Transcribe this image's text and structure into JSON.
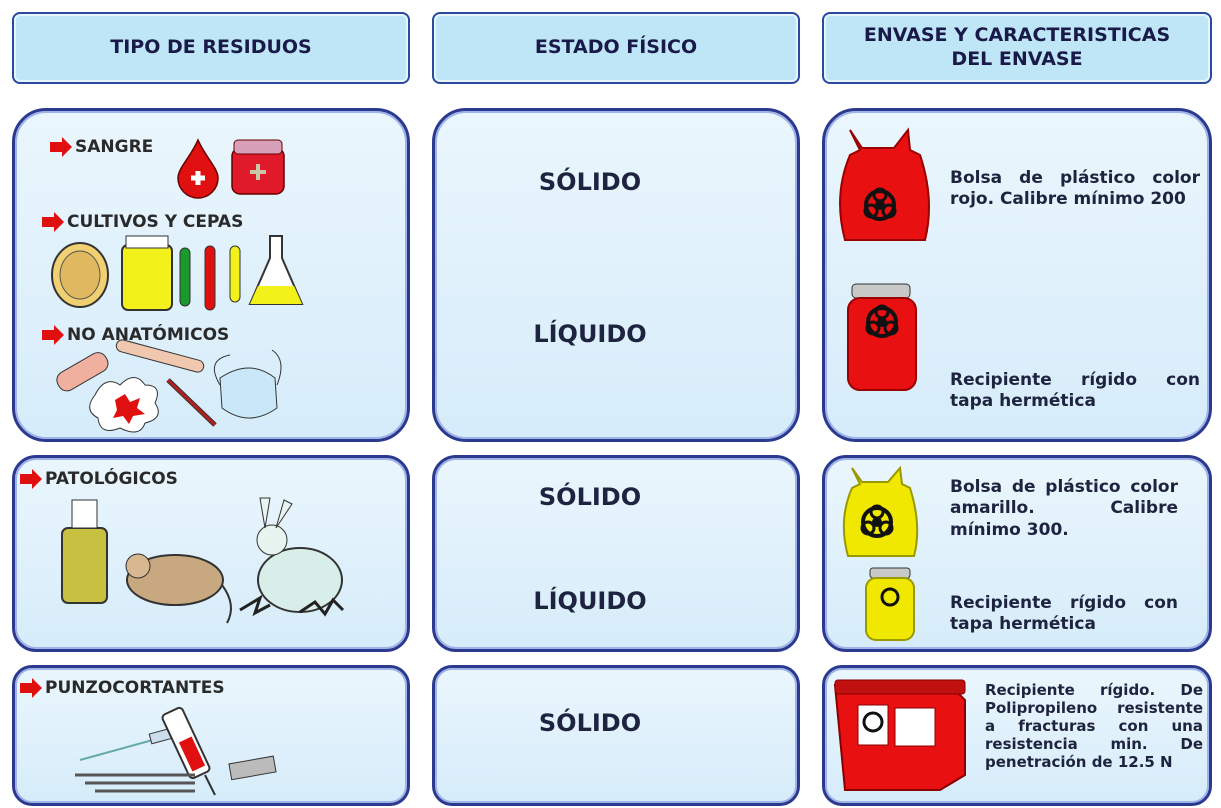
{
  "headers": [
    "TIPO DE RESIDUOS",
    "ESTADO FÍSICO",
    "ENVASE Y CARACTERISTICAS DEL ENVASE"
  ],
  "rows": [
    {
      "types": [
        "SANGRE",
        "CULTIVOS Y CEPAS",
        "NO ANATÓMICOS"
      ],
      "states": [
        "SÓLIDO",
        "LÍQUIDO"
      ],
      "containers": [
        "Bolsa de plástico color rojo. Calibre mínimo 200",
        "Recipiente rígido con tapa hermética"
      ]
    },
    {
      "types": [
        "PATOLÓGICOS"
      ],
      "states": [
        "SÓLIDO",
        "LÍQUIDO"
      ],
      "containers": [
        "Bolsa de plástico color amarillo. Calibre mínimo 300.",
        "Recipiente rígido con tapa hermética"
      ]
    },
    {
      "types": [
        "PUNZOCORTANTES"
      ],
      "states": [
        "SÓLIDO"
      ],
      "containers": [
        "Recipiente rígido. De Polipropileno resistente a fracturas con una resistencia min. De penetración de 12.5 N"
      ]
    }
  ]
}
